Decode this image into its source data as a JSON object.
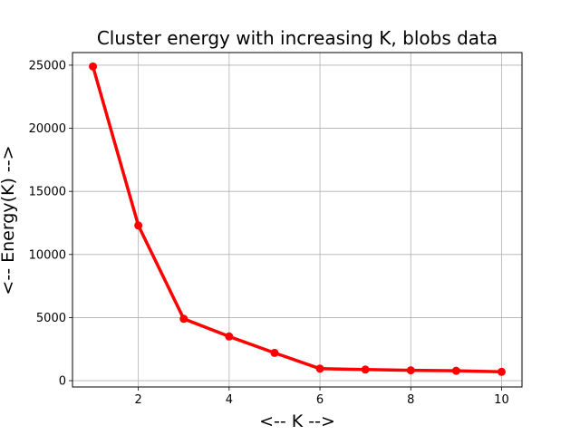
{
  "chart_data": {
    "type": "line",
    "title": "Cluster energy with increasing K, blobs data",
    "xlabel": "<-- K -->",
    "ylabel": "<-- Energy(K) -->",
    "xlim": [
      0.55,
      10.45
    ],
    "ylim": [
      -500,
      26000
    ],
    "xticks": [
      2,
      4,
      6,
      8,
      10
    ],
    "yticks": [
      0,
      5000,
      10000,
      15000,
      20000,
      25000
    ],
    "grid": true,
    "series": [
      {
        "color": "#ff0000",
        "marker": "circle",
        "x": [
          1,
          2,
          3,
          4,
          5,
          6,
          7,
          8,
          9,
          10
        ],
        "y": [
          24900,
          12300,
          4900,
          3500,
          2200,
          950,
          880,
          820,
          780,
          700
        ]
      }
    ]
  }
}
